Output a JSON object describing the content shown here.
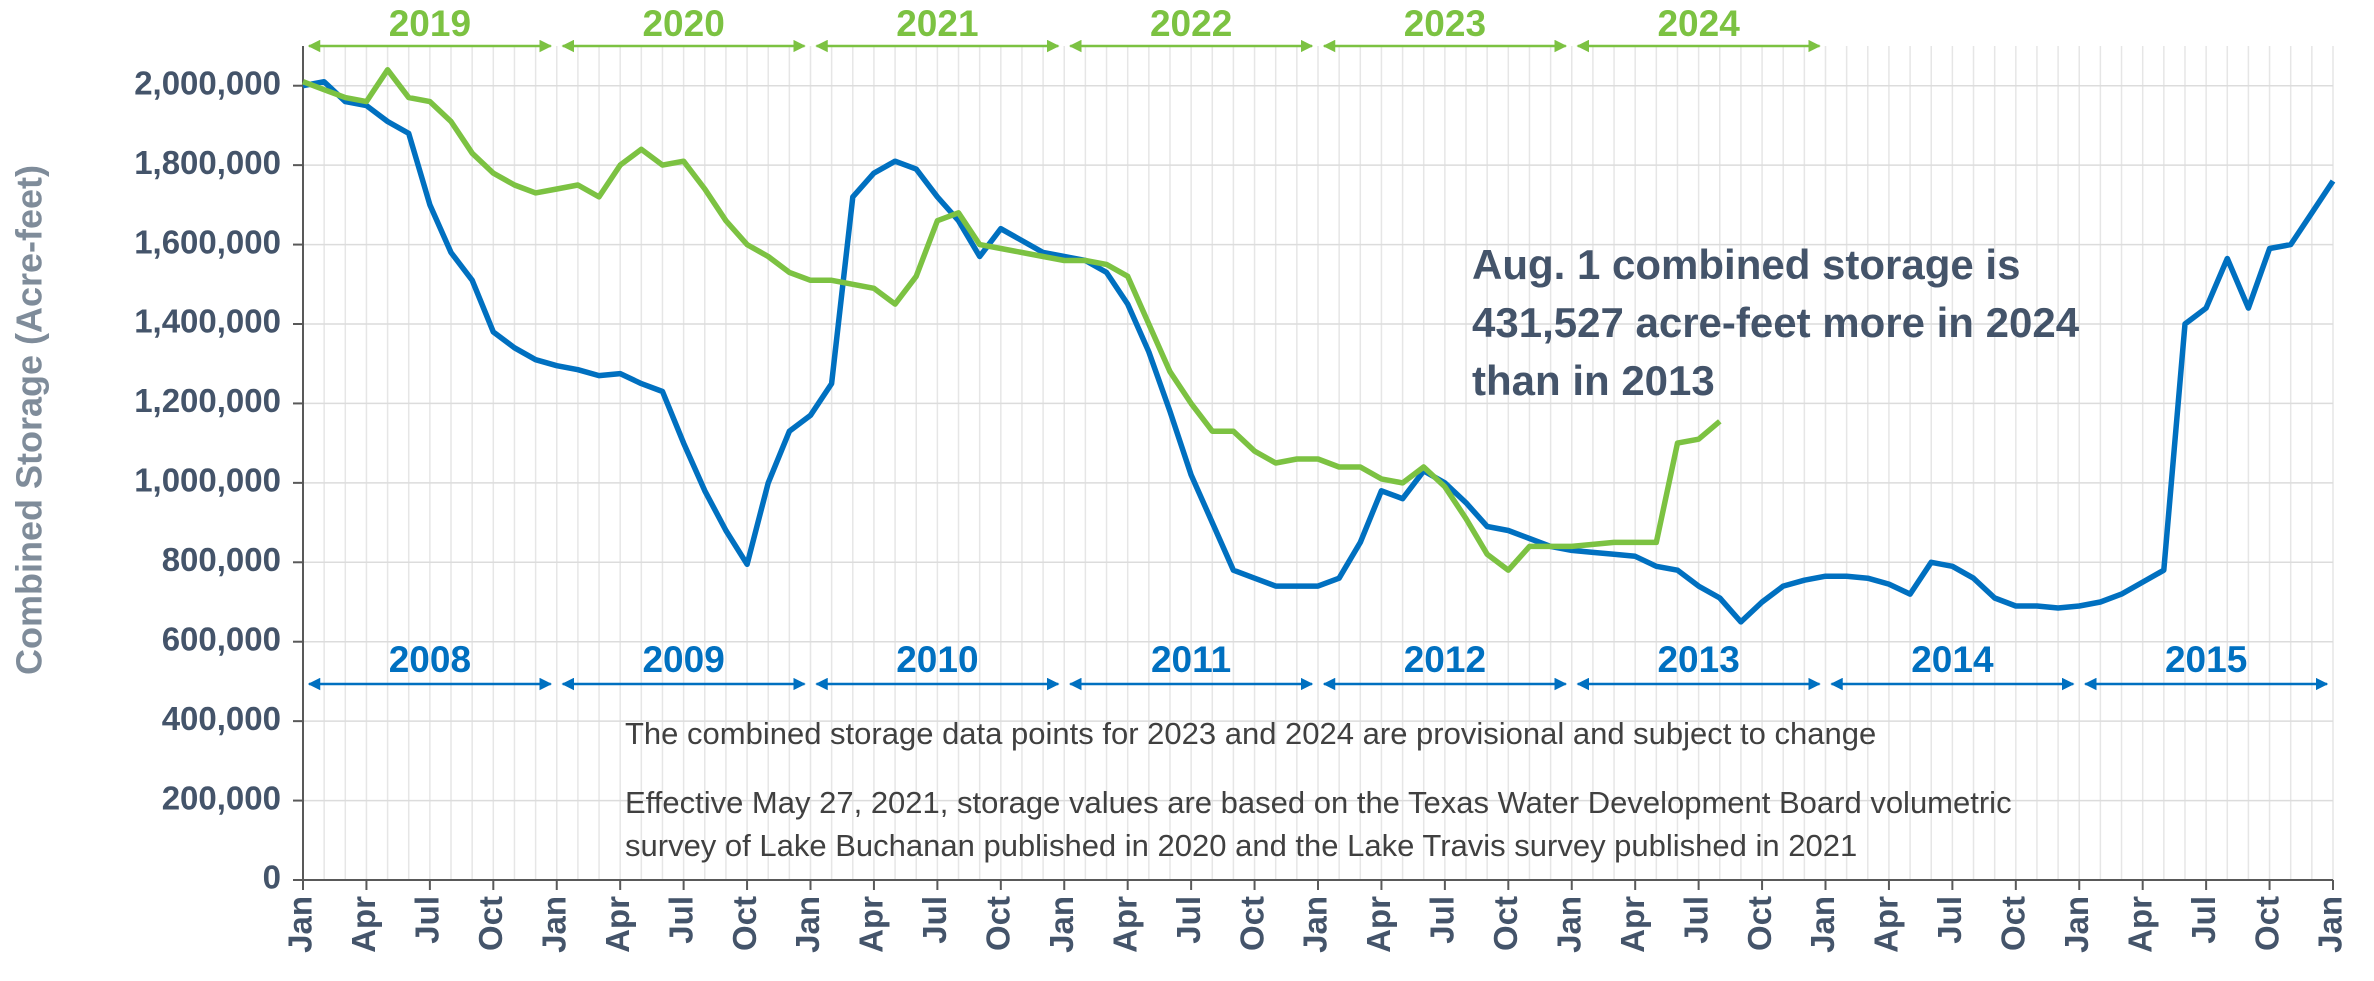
{
  "chart_data": {
    "type": "line",
    "y_label": "Combined Storage (Acre-feet)",
    "categories": [
      "Jan",
      null,
      null,
      "Apr",
      null,
      null,
      "Jul",
      null,
      null,
      "Oct",
      null,
      null,
      "Jan",
      null,
      null,
      "Apr",
      null,
      null,
      "Jul",
      null,
      null,
      "Oct",
      null,
      null,
      "Jan",
      null,
      null,
      "Apr",
      null,
      null,
      "Jul",
      null,
      null,
      "Oct",
      null,
      null,
      "Jan",
      null,
      null,
      "Apr",
      null,
      null,
      "Jul",
      null,
      null,
      "Oct",
      null,
      null,
      "Jan",
      null,
      null,
      "Apr",
      null,
      null,
      "Jul",
      null,
      null,
      "Oct",
      null,
      null,
      "Jan",
      null,
      null,
      "Apr",
      null,
      null,
      "Jul",
      null,
      null,
      "Oct",
      null,
      null,
      "Jan",
      null,
      null,
      "Apr",
      null,
      null,
      "Jul",
      null,
      null,
      "Oct",
      null,
      null,
      "Jan",
      null,
      null,
      "Apr",
      null,
      null,
      "Jul",
      null,
      null,
      "Oct",
      null,
      null,
      "Jan"
    ],
    "series": [
      {
        "color": "#0070c0",
        "values": [
          2000000,
          2010000,
          1960000,
          1950000,
          1910000,
          1880000,
          1700000,
          1580000,
          1510000,
          1380000,
          1340000,
          1310000,
          1295000,
          1285000,
          1270000,
          1275000,
          1250000,
          1230000,
          1100000,
          980000,
          880000,
          795000,
          1000000,
          1130000,
          1170000,
          1250000,
          1720000,
          1780000,
          1810000,
          1790000,
          1720000,
          1660000,
          1570000,
          1640000,
          1610000,
          1580000,
          1570000,
          1560000,
          1530000,
          1450000,
          1330000,
          1180000,
          1020000,
          900000,
          780000,
          760000,
          740000,
          740000,
          740000,
          760000,
          850000,
          980000,
          960000,
          1030000,
          1000000,
          950000,
          890000,
          880000,
          860000,
          840000,
          830000,
          825000,
          820000,
          815000,
          790000,
          780000,
          740000,
          710000,
          650000,
          700000,
          740000,
          755000,
          765000,
          765000,
          760000,
          745000,
          720000,
          800000,
          790000,
          760000,
          710000,
          690000,
          690000,
          685000,
          690000,
          700000,
          720000,
          750000,
          780000,
          1400000,
          1440000,
          1565000,
          1440000,
          1590000,
          1600000,
          1680000,
          1760000
        ]
      },
      {
        "color": "#7cc242",
        "values": [
          2010000,
          1990000,
          1970000,
          1960000,
          2040000,
          1970000,
          1960000,
          1910000,
          1830000,
          1780000,
          1750000,
          1730000,
          1740000,
          1750000,
          1720000,
          1800000,
          1840000,
          1800000,
          1810000,
          1740000,
          1660000,
          1600000,
          1570000,
          1530000,
          1510000,
          1510000,
          1500000,
          1490000,
          1450000,
          1520000,
          1660000,
          1680000,
          1600000,
          1590000,
          1580000,
          1570000,
          1560000,
          1560000,
          1550000,
          1520000,
          1400000,
          1280000,
          1200000,
          1130000,
          1130000,
          1080000,
          1050000,
          1060000,
          1060000,
          1040000,
          1040000,
          1010000,
          1000000,
          1040000,
          990000,
          910000,
          820000,
          780000,
          840000,
          840000,
          840000,
          845000,
          850000,
          850000,
          850000,
          1100000,
          1110000,
          1155000,
          null,
          null,
          null,
          null,
          null,
          null,
          null,
          null,
          null,
          null,
          null,
          null,
          null,
          null,
          null,
          null,
          null,
          null,
          null,
          null,
          null,
          null,
          null,
          null,
          null,
          null,
          null,
          null,
          null
        ]
      }
    ],
    "top_years": {
      "color": "#7cc242",
      "labels": [
        "2019",
        "2020",
        "2021",
        "2022",
        "2023",
        "2024"
      ]
    },
    "bottom_years": {
      "color": "#0070c0",
      "labels": [
        "2008",
        "2009",
        "2010",
        "2011",
        "2012",
        "2013",
        "2014",
        "2015"
      ]
    },
    "annotation": [
      "Aug. 1 combined storage is",
      "431,527 acre-feet more in 2024",
      "than in 2013"
    ],
    "notes": [
      "The combined storage data points for 2023 and 2024 are provisional and subject to change",
      "Effective May 27, 2021, storage values are based on the Texas Water Development Board volumetric",
      "survey of Lake Buchanan published in 2020 and the Lake Travis survey published in 2021"
    ],
    "ylim": [
      0,
      2100000
    ],
    "yticks": [
      0,
      {
        "value": 200000,
        "label": "200,000"
      },
      {
        "value": 400000,
        "label": "400,000"
      },
      {
        "value": 600000,
        "label": "600,000"
      },
      {
        "value": 800000,
        "label": "800,000"
      },
      {
        "value": 1000000,
        "label": "1,000,000"
      },
      {
        "value": 1200000,
        "label": "1,200,000"
      },
      {
        "value": 1400000,
        "label": "1,400,000"
      },
      {
        "value": 1600000,
        "label": "1,600,000"
      },
      {
        "value": 1800000,
        "label": "1,800,000"
      },
      {
        "value": 2000000,
        "label": "2,000,000"
      }
    ],
    "grid": true
  }
}
